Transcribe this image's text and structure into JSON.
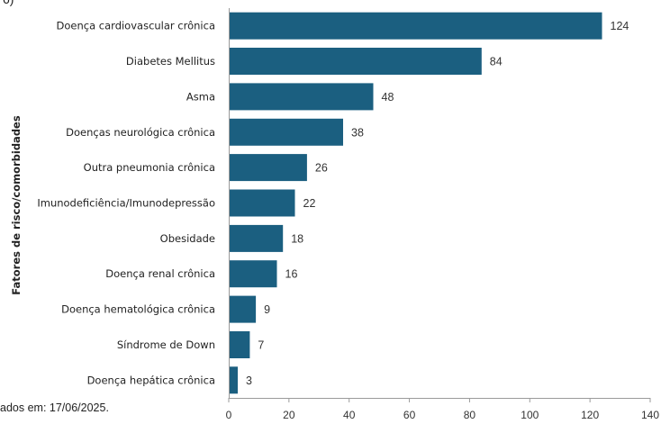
{
  "top_fragment": "6)",
  "footnote": "ados em: 17/06/2025.",
  "colors": {
    "bar": "#1b5f80",
    "axis": "#9a9a9a",
    "text": "#222222"
  },
  "chart_data": {
    "type": "bar",
    "orientation": "horizontal",
    "title": "",
    "xlabel": "",
    "ylabel": "Fatores de risco/comorbidades",
    "xlim": [
      0,
      140
    ],
    "xticks": [
      "0",
      "20",
      "40",
      "60",
      "80",
      "100",
      "120",
      "140"
    ],
    "grid": false,
    "categories": [
      "Doença cardiovascular crônica",
      "Diabetes Mellitus",
      "Asma",
      "Doenças neurológica crônica",
      "Outra pneumonia crônica",
      "Imunodeficiência/Imunodepressão",
      "Obesidade",
      "Doença renal crônica",
      "Doença hematológica crônica",
      "Síndrome de Down",
      "Doença hepática crônica"
    ],
    "values": [
      124,
      84,
      48,
      38,
      26,
      22,
      18,
      16,
      9,
      7,
      3
    ],
    "data_labels": [
      "124",
      "84",
      "48",
      "38",
      "26",
      "22",
      "18",
      "16",
      "9",
      "7",
      "3"
    ]
  }
}
